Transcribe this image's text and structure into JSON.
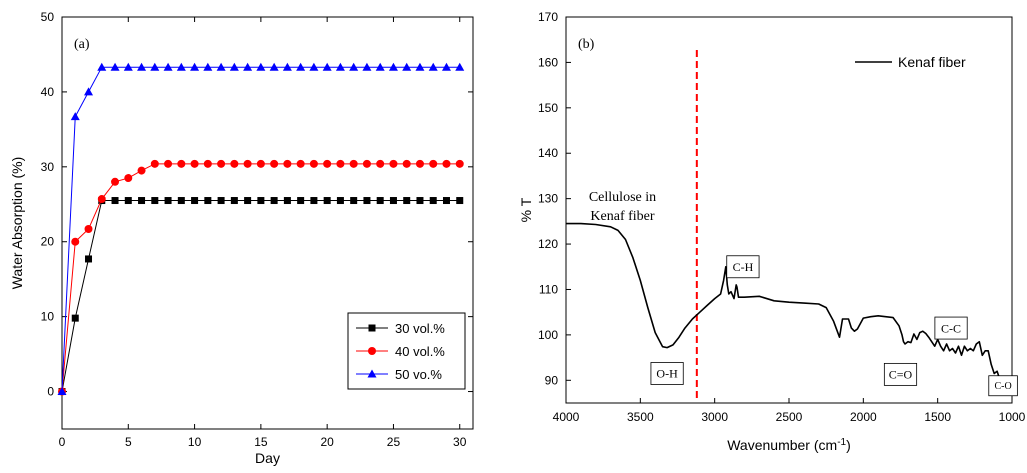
{
  "chart_data": [
    {
      "type": "line",
      "panel_label": "(a)",
      "xlabel": "Day",
      "ylabel": "Water Absorption (%)",
      "xlim": [
        0,
        31
      ],
      "ylim": [
        -5,
        50
      ],
      "xticks": [
        0,
        5,
        10,
        15,
        20,
        25,
        30
      ],
      "yticks": [
        0,
        10,
        20,
        30,
        40,
        50
      ],
      "legend_position": "bottom-right",
      "x": [
        0,
        1,
        2,
        3,
        4,
        5,
        6,
        7,
        8,
        9,
        10,
        11,
        12,
        13,
        14,
        15,
        16,
        17,
        18,
        19,
        20,
        21,
        22,
        23,
        24,
        25,
        26,
        27,
        28,
        29,
        30
      ],
      "series": [
        {
          "name": "30 vol.%",
          "marker": "square",
          "color": "#000000",
          "values": [
            0,
            9.8,
            17.7,
            25.5,
            25.5,
            25.5,
            25.5,
            25.5,
            25.5,
            25.5,
            25.5,
            25.5,
            25.5,
            25.5,
            25.5,
            25.5,
            25.5,
            25.5,
            25.5,
            25.5,
            25.5,
            25.5,
            25.5,
            25.5,
            25.5,
            25.5,
            25.5,
            25.5,
            25.5,
            25.5,
            25.5
          ]
        },
        {
          "name": "40 vol.%",
          "marker": "circle",
          "color": "#ff0000",
          "values": [
            0,
            20,
            21.7,
            25.7,
            28,
            28.5,
            29.5,
            30.4,
            30.4,
            30.4,
            30.4,
            30.4,
            30.4,
            30.4,
            30.4,
            30.4,
            30.4,
            30.4,
            30.4,
            30.4,
            30.4,
            30.4,
            30.4,
            30.4,
            30.4,
            30.4,
            30.4,
            30.4,
            30.4,
            30.4,
            30.4
          ]
        },
        {
          "name": "50 vo.%",
          "marker": "triangle",
          "color": "#0000ff",
          "values": [
            0,
            36.7,
            40,
            43.3,
            43.3,
            43.3,
            43.3,
            43.3,
            43.3,
            43.3,
            43.3,
            43.3,
            43.3,
            43.3,
            43.3,
            43.3,
            43.3,
            43.3,
            43.3,
            43.3,
            43.3,
            43.3,
            43.3,
            43.3,
            43.3,
            43.3,
            43.3,
            43.3,
            43.3,
            43.3,
            43.3
          ]
        }
      ]
    },
    {
      "type": "line",
      "panel_label": "(b)",
      "xlabel": "Wavenumber (cm",
      "xlabel_sup": "-1",
      "xlabel_end": ")",
      "ylabel": "% T",
      "xlim": [
        4000,
        1000
      ],
      "x_reversed": true,
      "ylim": [
        85,
        170
      ],
      "xticks": [
        4000,
        3500,
        3000,
        2500,
        2000,
        1500,
        1000
      ],
      "yticks": [
        90,
        100,
        110,
        120,
        130,
        140,
        150,
        160,
        170
      ],
      "legend_position": "top-right",
      "series": [
        {
          "name": "Kenaf fiber",
          "color": "#000000",
          "x": [
            4000,
            3900,
            3800,
            3700,
            3650,
            3600,
            3550,
            3500,
            3450,
            3400,
            3350,
            3320,
            3280,
            3240,
            3200,
            3150,
            3100,
            3050,
            3000,
            2960,
            2940,
            2925,
            2915,
            2905,
            2890,
            2870,
            2855,
            2850,
            2840,
            2800,
            2700,
            2600,
            2500,
            2400,
            2300,
            2250,
            2200,
            2160,
            2140,
            2100,
            2080,
            2060,
            2040,
            2020,
            2000,
            1950,
            1900,
            1850,
            1800,
            1760,
            1740,
            1730,
            1720,
            1700,
            1680,
            1660,
            1640,
            1620,
            1600,
            1580,
            1560,
            1540,
            1520,
            1500,
            1480,
            1460,
            1440,
            1420,
            1400,
            1380,
            1360,
            1340,
            1320,
            1300,
            1280,
            1260,
            1240,
            1220,
            1200,
            1180,
            1160,
            1140,
            1120,
            1100,
            1080,
            1060,
            1050,
            1040,
            1030,
            1020,
            1010,
            1000
          ],
          "values": [
            124.5,
            124.5,
            124.3,
            123.8,
            123,
            121,
            117,
            112,
            106,
            100.5,
            97.4,
            97.2,
            97.8,
            99.5,
            101.5,
            103.5,
            105,
            106.5,
            108,
            109,
            112,
            115,
            111,
            109,
            109.5,
            108,
            111,
            110.5,
            108.3,
            108.3,
            108.5,
            107.5,
            107.2,
            107,
            106.8,
            106,
            103,
            99.5,
            103.5,
            103.5,
            101.5,
            100.8,
            101.3,
            102.5,
            103.7,
            104,
            104.2,
            104,
            103.8,
            102,
            100,
            98.5,
            98,
            98.5,
            98.3,
            100.2,
            99,
            100.5,
            100.8,
            100.3,
            99.5,
            98.5,
            97.5,
            99,
            97.5,
            96.5,
            98,
            96.5,
            97,
            96,
            97.5,
            95.5,
            97.5,
            96.5,
            97,
            96.5,
            98,
            98.5,
            95.5,
            96.5,
            96.5,
            93.5,
            91.5,
            92,
            90,
            89,
            88.5,
            89.5,
            89,
            89.5,
            90,
            89.5
          ]
        }
      ],
      "annotations": [
        {
          "label": "Cellulose in",
          "label_line2": "Kenaf fiber",
          "x": 3620,
          "y": 129.5
        },
        {
          "label": "O-H",
          "x": 3320,
          "y": 91.5,
          "boxed": true
        },
        {
          "label": "C-H",
          "x": 2810,
          "y": 115,
          "boxed": true
        },
        {
          "label": "C=O",
          "x": 1750,
          "y": 91.3,
          "boxed": true
        },
        {
          "label": "C-C",
          "x": 1410,
          "y": 101.5,
          "boxed": true
        },
        {
          "label": "C-O",
          "x": 1060,
          "y": 88.8,
          "boxed": true
        }
      ],
      "reference_line": {
        "x": 3120,
        "color": "#ff0000",
        "style": "dashed"
      }
    }
  ]
}
